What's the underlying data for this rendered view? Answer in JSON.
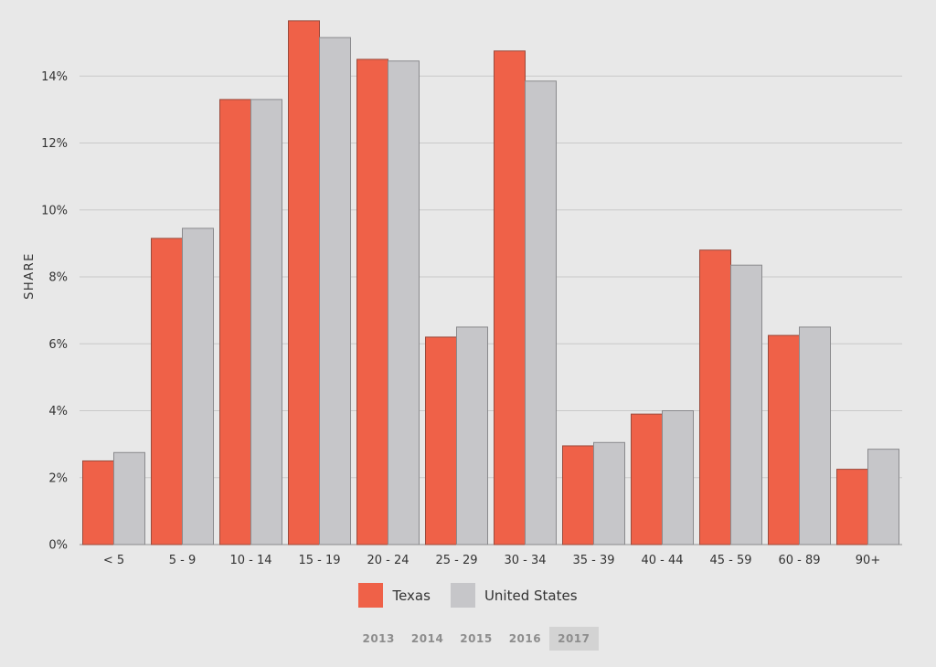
{
  "chart_data": {
    "type": "bar",
    "title": "",
    "xlabel": "",
    "ylabel": "SHARE",
    "ylim": [
      0,
      16
    ],
    "yticks": [
      "0%",
      "2%",
      "4%",
      "6%",
      "8%",
      "10%",
      "12%",
      "14%"
    ],
    "ytick_values": [
      0,
      2,
      4,
      6,
      8,
      10,
      12,
      14
    ],
    "grid": true,
    "legend_position": "bottom-center",
    "categories": [
      "< 5",
      "5 - 9",
      "10 - 14",
      "15 - 19",
      "20 - 24",
      "25 - 29",
      "30 - 34",
      "35 - 39",
      "40 - 44",
      "45 - 59",
      "60 - 89",
      "90+"
    ],
    "series": [
      {
        "name": "Texas",
        "color": "#ef6148",
        "values": [
          2.5,
          9.15,
          13.3,
          15.65,
          14.5,
          6.2,
          14.75,
          2.95,
          3.9,
          8.8,
          6.25,
          2.25
        ]
      },
      {
        "name": "United States",
        "color": "#c6c6c9",
        "values": [
          2.75,
          9.45,
          13.3,
          15.15,
          14.45,
          6.5,
          13.85,
          3.05,
          4.0,
          8.35,
          6.5,
          2.85
        ]
      }
    ]
  },
  "legend": {
    "items": [
      {
        "label": "Texas",
        "color": "#ef6148"
      },
      {
        "label": "United States",
        "color": "#c6c6c9"
      }
    ]
  },
  "year_selector": {
    "years": [
      "2013",
      "2014",
      "2015",
      "2016",
      "2017"
    ],
    "selected": "2017"
  }
}
